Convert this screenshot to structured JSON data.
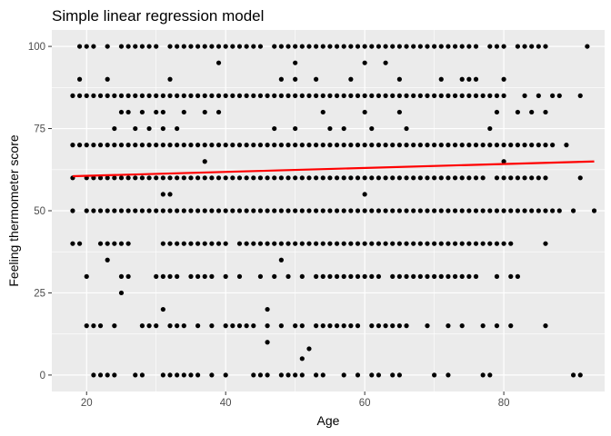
{
  "chart_data": {
    "type": "scatter",
    "title": "Simple linear regression model",
    "xlabel": "Age",
    "ylabel": "Feeling thermometer score",
    "xlim": [
      15,
      94.5
    ],
    "ylim": [
      -5,
      105
    ],
    "x_ticks": [
      20,
      40,
      60,
      80
    ],
    "x_tick_labels": [
      "20",
      "40",
      "60",
      "80"
    ],
    "y_ticks": [
      0,
      25,
      50,
      75,
      100
    ],
    "y_tick_labels": [
      "0",
      "25",
      "50",
      "75",
      "100"
    ],
    "grid": true,
    "colors": {
      "panel": "#ebebeb",
      "grid": "#ffffff",
      "points": "#000000",
      "line": "#ff0000"
    },
    "regression_line": {
      "x": [
        18,
        93
      ],
      "y": [
        60.5,
        65
      ]
    },
    "series": [
      {
        "rows": [
          {
            "y": 100,
            "x": [
              19,
              20,
              21,
              23,
              25,
              26,
              27,
              28,
              29,
              30,
              32,
              33,
              34,
              35,
              36,
              37,
              38,
              39,
              40,
              41,
              42,
              43,
              44,
              45,
              47,
              48,
              49,
              50,
              51,
              52,
              53,
              54,
              55,
              56,
              57,
              58,
              59,
              60,
              61,
              62,
              63,
              64,
              65,
              66,
              67,
              68,
              69,
              70,
              71,
              72,
              73,
              74,
              75,
              76,
              78,
              79,
              80,
              82,
              83,
              84,
              85,
              86,
              92
            ]
          },
          {
            "y": 95,
            "x": [
              39,
              50,
              60,
              63
            ]
          },
          {
            "y": 90,
            "x": [
              19,
              23,
              32,
              48,
              50,
              53,
              58,
              65,
              71,
              74,
              75,
              76,
              80
            ]
          },
          {
            "y": 85,
            "x": [
              18,
              19,
              20,
              21,
              22,
              23,
              24,
              25,
              26,
              27,
              28,
              29,
              30,
              31,
              32,
              33,
              34,
              35,
              36,
              37,
              38,
              39,
              40,
              41,
              42,
              43,
              44,
              45,
              46,
              47,
              48,
              49,
              50,
              51,
              52,
              53,
              54,
              55,
              56,
              57,
              58,
              59,
              60,
              61,
              62,
              63,
              64,
              65,
              66,
              67,
              68,
              69,
              70,
              71,
              72,
              73,
              74,
              75,
              76,
              77,
              78,
              79,
              80,
              83,
              85,
              87,
              88,
              91
            ]
          },
          {
            "y": 80,
            "x": [
              25,
              26,
              28,
              30,
              31,
              34,
              37,
              39,
              54,
              60,
              65,
              79,
              82,
              84,
              86
            ]
          },
          {
            "y": 75,
            "x": [
              24,
              27,
              29,
              31,
              33,
              47,
              50,
              55,
              57,
              61,
              66,
              78
            ]
          },
          {
            "y": 70,
            "x": [
              18,
              19,
              20,
              21,
              22,
              23,
              24,
              25,
              26,
              27,
              28,
              29,
              30,
              31,
              32,
              33,
              34,
              35,
              36,
              37,
              38,
              39,
              40,
              41,
              42,
              43,
              44,
              45,
              46,
              47,
              48,
              49,
              50,
              51,
              52,
              53,
              54,
              55,
              56,
              57,
              58,
              59,
              60,
              61,
              62,
              63,
              64,
              65,
              66,
              67,
              68,
              69,
              70,
              71,
              72,
              73,
              74,
              75,
              76,
              77,
              78,
              79,
              80,
              81,
              82,
              83,
              84,
              85,
              86,
              87,
              89
            ]
          },
          {
            "y": 65,
            "x": [
              37,
              80
            ]
          },
          {
            "y": 60,
            "x": [
              18,
              20,
              21,
              22,
              23,
              24,
              25,
              26,
              27,
              28,
              29,
              30,
              31,
              32,
              33,
              34,
              35,
              36,
              37,
              38,
              39,
              40,
              41,
              42,
              43,
              44,
              45,
              46,
              47,
              48,
              49,
              50,
              51,
              52,
              53,
              54,
              55,
              56,
              57,
              58,
              59,
              60,
              61,
              62,
              63,
              64,
              65,
              66,
              67,
              68,
              69,
              70,
              71,
              72,
              73,
              74,
              75,
              76,
              77,
              79,
              80,
              81,
              82,
              83,
              84,
              85,
              86,
              91
            ]
          },
          {
            "y": 55,
            "x": [
              31,
              32,
              60
            ]
          },
          {
            "y": 50,
            "x": [
              18,
              20,
              21,
              22,
              23,
              24,
              25,
              26,
              27,
              28,
              29,
              30,
              31,
              32,
              33,
              34,
              35,
              36,
              37,
              38,
              39,
              40,
              41,
              42,
              43,
              44,
              45,
              46,
              47,
              48,
              49,
              50,
              51,
              52,
              53,
              54,
              55,
              56,
              57,
              58,
              59,
              60,
              61,
              62,
              63,
              64,
              65,
              66,
              67,
              68,
              69,
              70,
              71,
              72,
              73,
              74,
              75,
              76,
              77,
              78,
              79,
              80,
              81,
              82,
              83,
              84,
              85,
              86,
              87,
              88,
              90,
              93
            ]
          },
          {
            "y": 40,
            "x": [
              18,
              19,
              22,
              23,
              24,
              25,
              26,
              31,
              32,
              33,
              34,
              35,
              36,
              37,
              38,
              39,
              40,
              42,
              43,
              44,
              45,
              46,
              47,
              48,
              49,
              50,
              51,
              52,
              53,
              54,
              55,
              56,
              57,
              58,
              59,
              60,
              61,
              62,
              63,
              64,
              65,
              66,
              67,
              68,
              69,
              70,
              71,
              72,
              73,
              74,
              75,
              76,
              77,
              78,
              79,
              80,
              81,
              86
            ]
          },
          {
            "y": 35,
            "x": [
              23,
              48
            ]
          },
          {
            "y": 30,
            "x": [
              20,
              25,
              26,
              30,
              31,
              32,
              33,
              35,
              36,
              37,
              38,
              40,
              42,
              45,
              47,
              49,
              51,
              53,
              54,
              55,
              56,
              57,
              58,
              59,
              60,
              61,
              62,
              64,
              65,
              66,
              67,
              68,
              69,
              70,
              71,
              72,
              73,
              74,
              75,
              76,
              79,
              81,
              82
            ]
          },
          {
            "y": 25,
            "x": [
              25
            ]
          },
          {
            "y": 20,
            "x": [
              31,
              46
            ]
          },
          {
            "y": 15,
            "x": [
              20,
              21,
              22,
              24,
              28,
              29,
              30,
              32,
              33,
              34,
              36,
              38,
              40,
              41,
              42,
              43,
              44,
              46,
              48,
              50,
              51,
              53,
              54,
              55,
              56,
              57,
              58,
              59,
              61,
              62,
              63,
              64,
              65,
              66,
              69,
              72,
              74,
              77,
              79,
              81,
              86
            ]
          },
          {
            "y": 10,
            "x": [
              46
            ]
          },
          {
            "y": 8,
            "x": [
              52
            ]
          },
          {
            "y": 5,
            "x": [
              51
            ]
          },
          {
            "y": 0,
            "x": [
              21,
              22,
              23,
              24,
              27,
              28,
              31,
              32,
              33,
              34,
              35,
              36,
              38,
              40,
              44,
              45,
              46,
              48,
              49,
              50,
              51,
              53,
              54,
              57,
              59,
              61,
              62,
              64,
              65,
              70,
              72,
              77,
              78,
              90,
              91
            ]
          }
        ]
      }
    ]
  }
}
